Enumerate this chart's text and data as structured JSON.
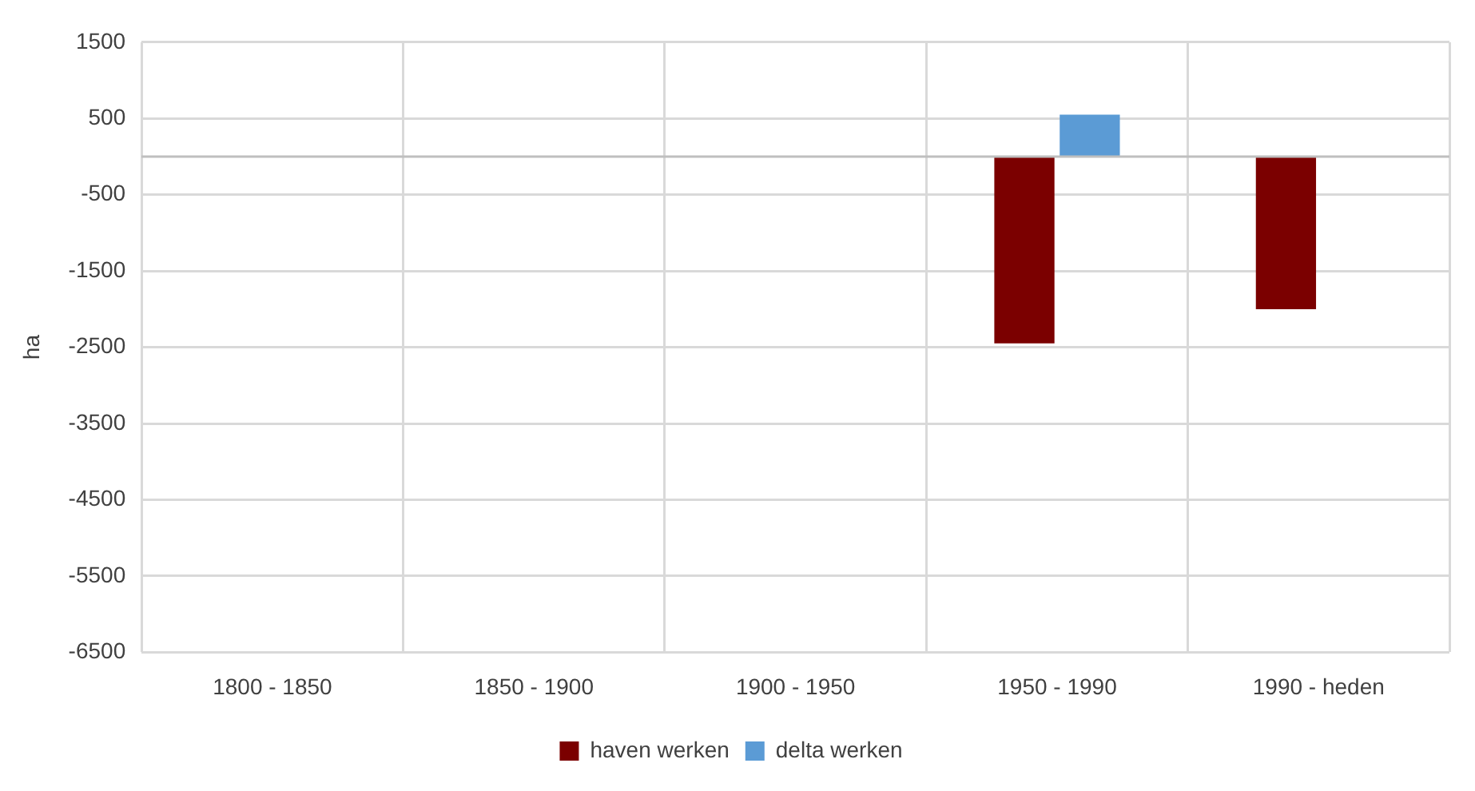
{
  "chart_data": {
    "type": "bar",
    "ylabel": "ha",
    "categories": [
      "1800 - 1850",
      "1850 - 1900",
      "1900 - 1950",
      "1950 - 1990",
      "1990 - heden"
    ],
    "series": [
      {
        "name": "haven werken",
        "color": "#7b0000",
        "values": [
          null,
          null,
          null,
          -2450,
          -2000
        ]
      },
      {
        "name": "delta werken",
        "color": "#5b9bd5",
        "values": [
          null,
          null,
          null,
          550,
          null
        ]
      }
    ],
    "ylim": [
      -6500,
      1500
    ],
    "yticks": [
      1500,
      500,
      -500,
      -1500,
      -2500,
      -3500,
      -4500,
      -5500,
      -6500
    ],
    "ref_lines": [
      {
        "axis": "y",
        "value": 0,
        "color": "#bfbfbf"
      }
    ],
    "grid": true,
    "legend": "bottom"
  }
}
